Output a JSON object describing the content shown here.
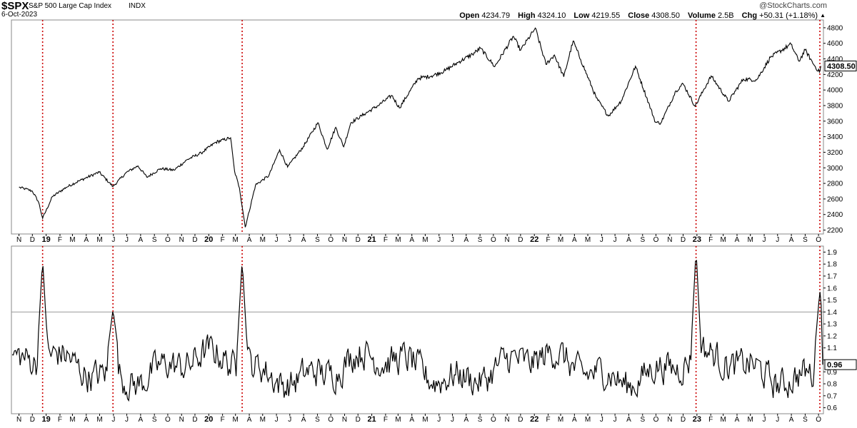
{
  "header": {
    "symbol": "$SPX",
    "description": "S&P 500 Large Cap Index",
    "exchange": "INDX",
    "date": "6-Oct-2023",
    "watermark": "@StockCharts.com",
    "open_label": "Open",
    "open": "4234.79",
    "high_label": "High",
    "high": "4324.10",
    "low_label": "Low",
    "low": "4219.55",
    "close_label": "Close",
    "close": "4308.50",
    "volume_label": "Volume",
    "volume": "2.5B",
    "chg_label": "Chg",
    "chg": "+50.31 (+1.18%)"
  },
  "colors": {
    "line": "#000000",
    "marker": "#cc0000",
    "grid": "#cccccc",
    "refline": "#999999"
  },
  "chart_data": [
    {
      "type": "line",
      "name": "price",
      "ylim": [
        2150,
        4900
      ],
      "yticks": [
        2200,
        2400,
        2600,
        2800,
        3000,
        3200,
        3400,
        3600,
        3800,
        4000,
        4200,
        4400,
        4600,
        4800
      ],
      "last_value_label": "4308.50",
      "series": [
        {
          "x": [
            "2018-11-01",
            "2018-11-15",
            "2018-12-01",
            "2018-12-15",
            "2018-12-24",
            "2019-01-15",
            "2019-02-15",
            "2019-03-15",
            "2019-04-30",
            "2019-05-31",
            "2019-06-30",
            "2019-07-26",
            "2019-08-15",
            "2019-09-15",
            "2019-10-15",
            "2019-11-15",
            "2019-12-15",
            "2020-01-17",
            "2020-02-19",
            "2020-02-28",
            "2020-03-10",
            "2020-03-23",
            "2020-04-15",
            "2020-05-15",
            "2020-06-08",
            "2020-06-26",
            "2020-07-31",
            "2020-09-02",
            "2020-09-23",
            "2020-10-12",
            "2020-10-30",
            "2020-11-15",
            "2020-12-15",
            "2021-01-15",
            "2021-02-15",
            "2021-03-04",
            "2021-04-15",
            "2021-05-15",
            "2021-06-15",
            "2021-07-15",
            "2021-08-15",
            "2021-09-02",
            "2021-10-04",
            "2021-11-15",
            "2021-12-01",
            "2021-12-31",
            "2022-01-03",
            "2022-01-27",
            "2022-02-15",
            "2022-03-08",
            "2022-03-29",
            "2022-04-15",
            "2022-05-20",
            "2022-06-16",
            "2022-07-15",
            "2022-08-16",
            "2022-09-30",
            "2022-10-12",
            "2022-11-15",
            "2022-12-01",
            "2022-12-28",
            "2023-01-15",
            "2023-02-02",
            "2023-03-13",
            "2023-04-15",
            "2023-05-15",
            "2023-06-15",
            "2023-07-31",
            "2023-08-18",
            "2023-09-01",
            "2023-09-20",
            "2023-10-03",
            "2023-10-06"
          ],
          "values": [
            2750,
            2730,
            2700,
            2560,
            2351,
            2630,
            2750,
            2830,
            2945,
            2760,
            2940,
            3025,
            2880,
            2990,
            2970,
            3110,
            3190,
            3330,
            3386,
            2954,
            2740,
            2237,
            2780,
            2900,
            3232,
            3010,
            3270,
            3580,
            3240,
            3520,
            3270,
            3580,
            3690,
            3800,
            3930,
            3770,
            4150,
            4180,
            4250,
            4360,
            4460,
            4537,
            4300,
            4690,
            4510,
            4766,
            4796,
            4330,
            4450,
            4170,
            4630,
            4390,
            3900,
            3666,
            3860,
            4305,
            3585,
            3577,
            3990,
            4080,
            3790,
            3990,
            4180,
            3855,
            4140,
            4130,
            4420,
            4588,
            4370,
            4515,
            4330,
            4229,
            4308.5
          ]
        }
      ]
    },
    {
      "type": "line",
      "name": "ratio",
      "ylim": [
        0.55,
        1.95
      ],
      "yticks": [
        0.6,
        0.7,
        0.8,
        0.9,
        1.0,
        1.1,
        1.2,
        1.3,
        1.4,
        1.5,
        1.6,
        1.7,
        1.8,
        1.9
      ],
      "ytick_labels": [
        "0.6",
        "0.7",
        "0.8",
        "0.9",
        "",
        "1.1",
        "1.2",
        "1.3",
        "1.4",
        "1.5",
        "1.6",
        "1.7",
        "1.8",
        "1.9"
      ],
      "reference_line": 1.4,
      "last_value_label": "0.96",
      "spikes": [
        {
          "x": "2018-12-24",
          "value": 1.84
        },
        {
          "x": "2019-05-31",
          "value": 1.42
        },
        {
          "x": "2020-03-16",
          "value": 1.83
        },
        {
          "x": "2022-12-30",
          "value": 1.92
        },
        {
          "x": "2023-10-04",
          "value": 1.58
        }
      ]
    }
  ],
  "markers": [
    "2018-12-24",
    "2019-05-31",
    "2020-03-16",
    "2022-12-30",
    "2023-10-04"
  ],
  "x_axis": {
    "labels": [
      {
        "text": "N",
        "date": "2018-11-01"
      },
      {
        "text": "D",
        "date": "2018-12-01"
      },
      {
        "text": "19",
        "date": "2019-01-01",
        "bold": true
      },
      {
        "text": "F",
        "date": "2019-02-01"
      },
      {
        "text": "M",
        "date": "2019-03-01"
      },
      {
        "text": "A",
        "date": "2019-04-01"
      },
      {
        "text": "M",
        "date": "2019-05-01"
      },
      {
        "text": "J",
        "date": "2019-06-01"
      },
      {
        "text": "J",
        "date": "2019-07-01"
      },
      {
        "text": "A",
        "date": "2019-08-01"
      },
      {
        "text": "S",
        "date": "2019-09-01"
      },
      {
        "text": "O",
        "date": "2019-10-01"
      },
      {
        "text": "N",
        "date": "2019-11-01"
      },
      {
        "text": "D",
        "date": "2019-12-01"
      },
      {
        "text": "20",
        "date": "2020-01-01",
        "bold": true
      },
      {
        "text": "F",
        "date": "2020-02-01"
      },
      {
        "text": "M",
        "date": "2020-03-01"
      },
      {
        "text": "A",
        "date": "2020-04-01"
      },
      {
        "text": "M",
        "date": "2020-05-01"
      },
      {
        "text": "J",
        "date": "2020-06-01"
      },
      {
        "text": "J",
        "date": "2020-07-01"
      },
      {
        "text": "A",
        "date": "2020-08-01"
      },
      {
        "text": "S",
        "date": "2020-09-01"
      },
      {
        "text": "O",
        "date": "2020-10-01"
      },
      {
        "text": "N",
        "date": "2020-11-01"
      },
      {
        "text": "D",
        "date": "2020-12-01"
      },
      {
        "text": "21",
        "date": "2021-01-01",
        "bold": true
      },
      {
        "text": "F",
        "date": "2021-02-01"
      },
      {
        "text": "M",
        "date": "2021-03-01"
      },
      {
        "text": "A",
        "date": "2021-04-01"
      },
      {
        "text": "M",
        "date": "2021-05-01"
      },
      {
        "text": "J",
        "date": "2021-06-01"
      },
      {
        "text": "J",
        "date": "2021-07-01"
      },
      {
        "text": "A",
        "date": "2021-08-01"
      },
      {
        "text": "S",
        "date": "2021-09-01"
      },
      {
        "text": "O",
        "date": "2021-10-01"
      },
      {
        "text": "N",
        "date": "2021-11-01"
      },
      {
        "text": "D",
        "date": "2021-12-01"
      },
      {
        "text": "22",
        "date": "2022-01-01",
        "bold": true
      },
      {
        "text": "F",
        "date": "2022-02-01"
      },
      {
        "text": "M",
        "date": "2022-03-01"
      },
      {
        "text": "A",
        "date": "2022-04-01"
      },
      {
        "text": "M",
        "date": "2022-05-01"
      },
      {
        "text": "J",
        "date": "2022-06-01"
      },
      {
        "text": "J",
        "date": "2022-07-01"
      },
      {
        "text": "A",
        "date": "2022-08-01"
      },
      {
        "text": "S",
        "date": "2022-09-01"
      },
      {
        "text": "O",
        "date": "2022-10-01"
      },
      {
        "text": "N",
        "date": "2022-11-01"
      },
      {
        "text": "D",
        "date": "2022-12-01"
      },
      {
        "text": "23",
        "date": "2023-01-01",
        "bold": true
      },
      {
        "text": "F",
        "date": "2023-02-01"
      },
      {
        "text": "M",
        "date": "2023-03-01"
      },
      {
        "text": "A",
        "date": "2023-04-01"
      },
      {
        "text": "M",
        "date": "2023-05-01"
      },
      {
        "text": "J",
        "date": "2023-06-01"
      },
      {
        "text": "J",
        "date": "2023-07-01"
      },
      {
        "text": "A",
        "date": "2023-08-01"
      },
      {
        "text": "S",
        "date": "2023-09-01"
      },
      {
        "text": "O",
        "date": "2023-10-01"
      }
    ]
  }
}
